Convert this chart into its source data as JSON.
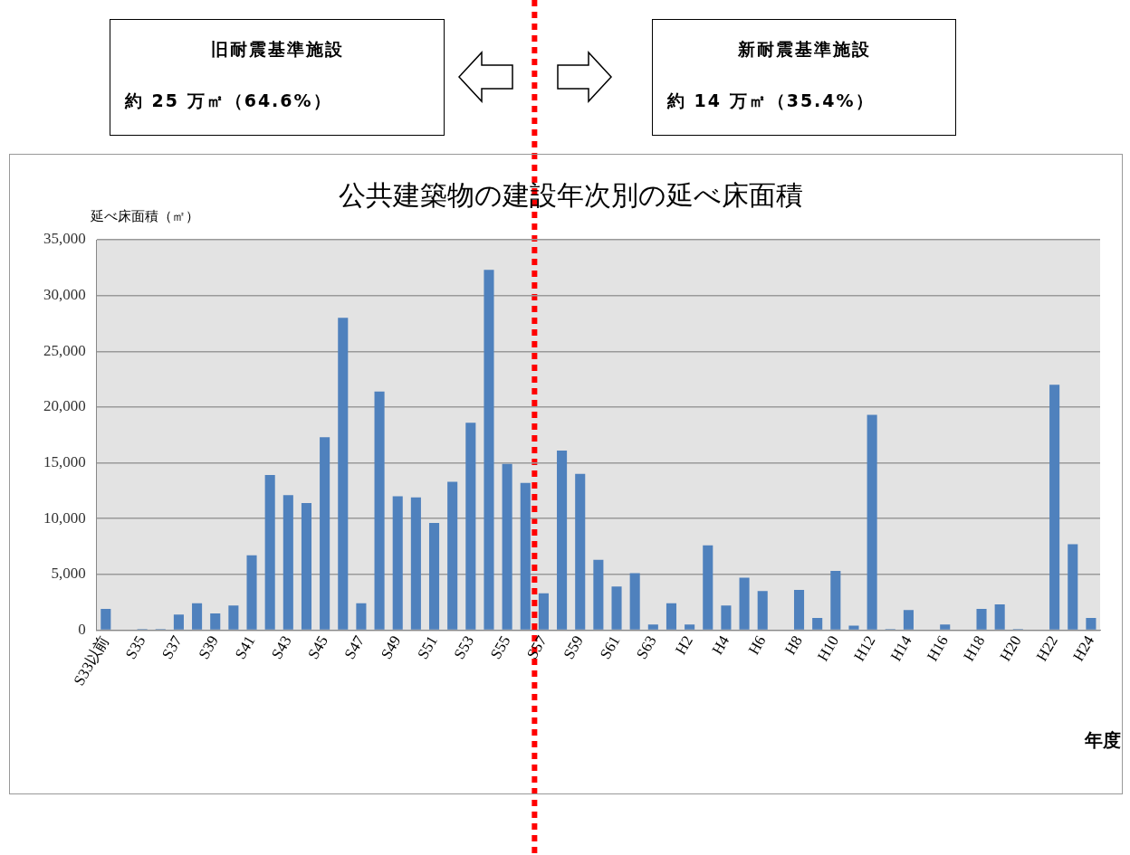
{
  "chart_data": {
    "type": "bar",
    "title": "公共建築物の建設年次別の延べ床面積",
    "ylabel": "延べ床面積（㎡）",
    "xlabel": "年度",
    "categories": [
      "S33以前",
      null,
      "S35",
      null,
      "S37",
      null,
      "S39",
      null,
      "S41",
      null,
      "S43",
      null,
      "S45",
      null,
      "S47",
      null,
      "S49",
      null,
      "S51",
      null,
      "S53",
      null,
      "S55",
      null,
      "S57",
      null,
      "S59",
      null,
      "S61",
      null,
      "S63",
      null,
      "H2",
      null,
      "H4",
      null,
      "H6",
      null,
      "H8",
      null,
      "H10",
      null,
      "H12",
      null,
      "H14",
      null,
      "H16",
      null,
      "H18",
      null,
      "H20",
      null,
      "H22",
      null,
      "H24"
    ],
    "values": [
      1900,
      0,
      100,
      100,
      1400,
      2400,
      1500,
      2200,
      6700,
      13900,
      12100,
      11400,
      17300,
      28000,
      2400,
      21400,
      12000,
      11900,
      9600,
      13300,
      18600,
      32300,
      14900,
      13200,
      3300,
      16100,
      14000,
      6300,
      3900,
      5100,
      500,
      2400,
      500,
      7600,
      2200,
      4700,
      3500,
      0,
      3600,
      1100,
      5300,
      400,
      19300,
      100,
      1800,
      0,
      500,
      0,
      1900,
      2300,
      100,
      0,
      22000,
      7700,
      1100
    ],
    "color": "#4f81bd",
    "ylim": [
      0,
      35000
    ],
    "yticks": [
      0,
      {
        "value": 5000,
        "label": "5,000"
      },
      {
        "value": 10000,
        "label": "10,000"
      },
      {
        "value": 15000,
        "label": "15,000"
      },
      {
        "value": 20000,
        "label": "20,000"
      },
      {
        "value": 25000,
        "label": "25,000"
      },
      {
        "value": 30000,
        "label": "30,000"
      },
      {
        "value": 35000,
        "label": "35,000"
      }
    ],
    "grid": "y",
    "ref_lines": [
      {
        "axis": "x",
        "value": "S57",
        "color": "#ff0000",
        "line_style": "dotted"
      }
    ],
    "annotations": [
      "旧耐震基準施設",
      "約 25 万㎡（64.6%）",
      "新耐震基準施設",
      "約 14 万㎡（35.4%）"
    ]
  }
}
